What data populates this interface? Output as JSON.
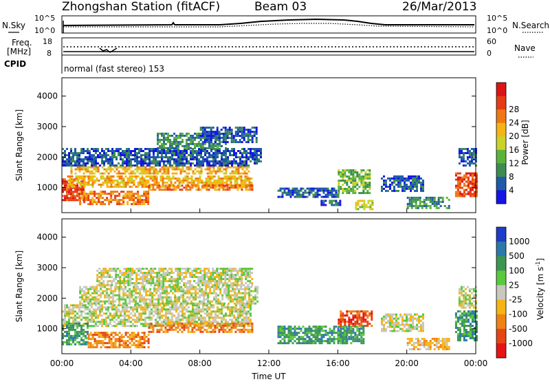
{
  "header": {
    "station": "Zhongshan Station (fitACF)",
    "beam": "Beam 03",
    "date": "26/Mar/2013"
  },
  "noise_panel": {
    "left_label": "N.Sky",
    "right_label": "N.Search",
    "left_ticks": [
      "10^5",
      "10^0"
    ],
    "right_ticks": [
      "10^5",
      "10^0"
    ]
  },
  "freq_panel": {
    "left_label_top": "Freq.",
    "left_label_bottom": "[MHz]",
    "right_label": "Nave",
    "left_ticks": [
      "18",
      "8"
    ],
    "right_ticks": [
      "60",
      "0"
    ]
  },
  "cpid": {
    "label": "CPID",
    "mode": "normal (fast stereo) 153"
  },
  "colors": {
    "frame": "#000000",
    "background": "#ffffff",
    "ground_scatter": "#c8c8c0"
  },
  "chart_data": [
    {
      "type": "heatmap",
      "title": "",
      "quantity": "Power",
      "xlabel": "Time UT",
      "ylabel": "Slant Range [km]",
      "xlim_hours": [
        0,
        24
      ],
      "ylim_km": [
        180,
        4600
      ],
      "x_ticks": [
        "00:00",
        "04:00",
        "08:00",
        "12:00",
        "16:00",
        "20:00",
        "00:00"
      ],
      "y_ticks": [
        1000,
        2000,
        3000,
        4000
      ],
      "colorbar": {
        "label": "Power [dB]",
        "ticks": [
          "4",
          "8",
          "12",
          "16",
          "20",
          "24",
          "28"
        ],
        "colors": [
          "#1414e6",
          "#1e5aaa",
          "#3c8c50",
          "#5ab43c",
          "#c8d228",
          "#f5b414",
          "#f07814",
          "#e63c14",
          "#dc1414"
        ]
      },
      "bands": [
        {
          "t0": 0.0,
          "t1": 1.3,
          "r0": 600,
          "r1": 1300,
          "level": 7
        },
        {
          "t0": 0.3,
          "t1": 11.0,
          "r0": 1050,
          "r1": 1400,
          "level": 5
        },
        {
          "t0": 0.5,
          "t1": 10.8,
          "r0": 1450,
          "r1": 1700,
          "level": 5
        },
        {
          "t0": 0.0,
          "t1": 11.5,
          "r0": 1750,
          "r1": 2300,
          "level": 1
        },
        {
          "t0": 5.5,
          "t1": 9.5,
          "r0": 2300,
          "r1": 2800,
          "level": 2
        },
        {
          "t0": 8.0,
          "t1": 11.3,
          "r0": 2500,
          "r1": 3000,
          "level": 1
        },
        {
          "t0": 1.0,
          "t1": 5.0,
          "r0": 450,
          "r1": 900,
          "level": 6
        },
        {
          "t0": 5.0,
          "t1": 11.0,
          "r0": 900,
          "r1": 1100,
          "level": 6
        },
        {
          "t0": 12.5,
          "t1": 16.0,
          "r0": 700,
          "r1": 1000,
          "level": 1
        },
        {
          "t0": 15.0,
          "t1": 16.2,
          "r0": 400,
          "r1": 600,
          "level": 1
        },
        {
          "t0": 16.0,
          "t1": 17.8,
          "r0": 800,
          "r1": 1600,
          "level": 3
        },
        {
          "t0": 17.0,
          "t1": 18.0,
          "r0": 300,
          "r1": 600,
          "level": 4
        },
        {
          "t0": 18.5,
          "t1": 21.0,
          "r0": 900,
          "r1": 1400,
          "level": 1
        },
        {
          "t0": 20.0,
          "t1": 22.5,
          "r0": 300,
          "r1": 700,
          "level": 2
        },
        {
          "t0": 22.8,
          "t1": 24.0,
          "r0": 700,
          "r1": 1500,
          "level": 7
        },
        {
          "t0": 23.0,
          "t1": 24.0,
          "r0": 1700,
          "r1": 2300,
          "level": 1
        }
      ]
    },
    {
      "type": "heatmap",
      "title": "",
      "quantity": "Velocity",
      "xlabel": "Time UT",
      "ylabel": "Slant Range [km]",
      "xlim_hours": [
        0,
        24
      ],
      "ylim_km": [
        180,
        4600
      ],
      "x_ticks": [
        "00:00",
        "04:00",
        "08:00",
        "12:00",
        "16:00",
        "20:00",
        "00:00"
      ],
      "y_ticks": [
        1000,
        2000,
        3000,
        4000
      ],
      "colorbar": {
        "label": "Velocity [m s-1]",
        "label_main": "Velocity  [m s",
        "label_exp": "-1",
        "label_close": "]",
        "ticks": [
          "1000",
          "500",
          "100",
          "25",
          "-25",
          "-100",
          "-500",
          "-1000"
        ],
        "colors": [
          "#1e3cc8",
          "#2d78aa",
          "#3c9650",
          "#5ac83c",
          "#c8c8c0",
          "#f5b414",
          "#f08214",
          "#e64614",
          "#e61414"
        ]
      },
      "bands": [
        {
          "t0": 0.0,
          "t1": 11.0,
          "r0": 1100,
          "r1": 1800,
          "level": 4
        },
        {
          "t0": 1.0,
          "t1": 11.3,
          "r0": 1800,
          "r1": 2400,
          "level": 4
        },
        {
          "t0": 2.0,
          "t1": 11.0,
          "r0": 2400,
          "r1": 3000,
          "level": 4
        },
        {
          "t0": 0.0,
          "t1": 1.5,
          "r0": 500,
          "r1": 1200,
          "level": 2
        },
        {
          "t0": 1.5,
          "t1": 5.0,
          "r0": 400,
          "r1": 900,
          "level": 6
        },
        {
          "t0": 5.0,
          "t1": 11.0,
          "r0": 900,
          "r1": 1200,
          "level": 6
        },
        {
          "t0": 12.5,
          "t1": 16.5,
          "r0": 500,
          "r1": 1100,
          "level": 2
        },
        {
          "t0": 16.0,
          "t1": 18.0,
          "r0": 1100,
          "r1": 1600,
          "level": 7
        },
        {
          "t0": 16.0,
          "t1": 17.5,
          "r0": 500,
          "r1": 1100,
          "level": 2
        },
        {
          "t0": 18.5,
          "t1": 21.0,
          "r0": 900,
          "r1": 1500,
          "level": 4
        },
        {
          "t0": 20.0,
          "t1": 22.5,
          "r0": 300,
          "r1": 700,
          "level": 5
        },
        {
          "t0": 22.8,
          "t1": 24.0,
          "r0": 600,
          "r1": 1600,
          "level": 2
        },
        {
          "t0": 23.0,
          "t1": 24.0,
          "r0": 1700,
          "r1": 2400,
          "level": 4
        }
      ]
    }
  ]
}
